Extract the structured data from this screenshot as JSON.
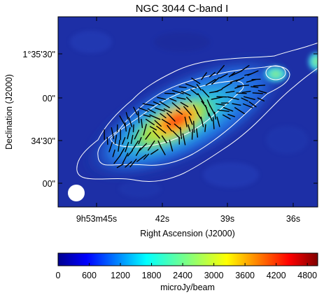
{
  "chart_data": {
    "type": "heatmap",
    "title": "NGC 3044   C-band   I",
    "xlabel": "Right Ascension (J2000)",
    "ylabel": "Declination (J2000)",
    "x_ticks": [
      "9h53m45s",
      "42s",
      "39s",
      "36s"
    ],
    "y_ticks": [
      "1°35'30\"",
      "00\"",
      "34'30\"",
      "00\""
    ],
    "colorbar": {
      "label": "microJy/beam",
      "range": [
        0,
        5000
      ],
      "ticks": [
        0,
        600,
        1200,
        1800,
        2400,
        3000,
        3600,
        4200,
        4800
      ],
      "colormap": "jet"
    },
    "contour_color": "#ffffff",
    "vector_color": "#000000",
    "beam_color": "#ffffff",
    "background_color": "#1a2a9a"
  }
}
